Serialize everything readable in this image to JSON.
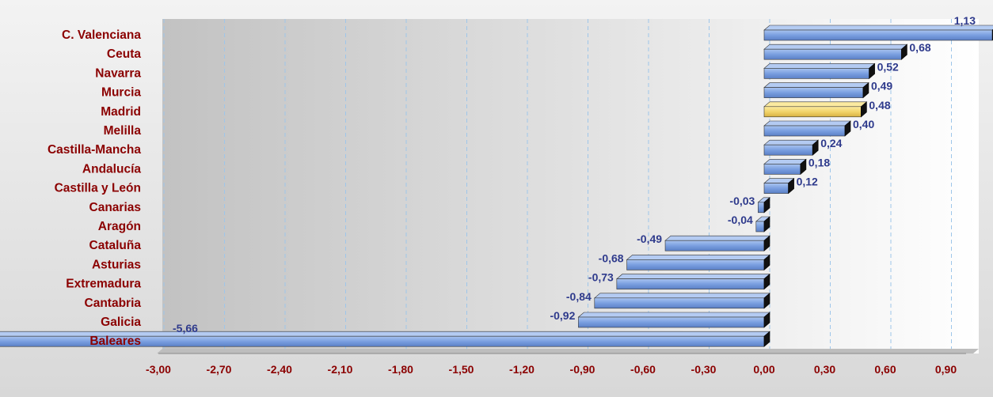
{
  "chart_data": {
    "type": "bar",
    "orientation": "horizontal",
    "title": "",
    "xlabel": "",
    "ylabel": "",
    "categories": [
      "C. Valenciana",
      "Ceuta",
      "Navarra",
      "Murcia",
      "Madrid",
      "Melilla",
      "Castilla-Mancha",
      "Andalucía",
      "Castilla y León",
      "Canarias",
      "Aragón",
      "Cataluña",
      "Asturias",
      "Extremadura",
      "Cantabria",
      "Galicia",
      "Baleares"
    ],
    "values": [
      1.13,
      0.68,
      0.52,
      0.49,
      0.48,
      0.4,
      0.24,
      0.18,
      0.12,
      -0.03,
      -0.04,
      -0.49,
      -0.68,
      -0.73,
      -0.84,
      -0.92,
      -5.66
    ],
    "value_labels": [
      "1,13",
      "0,68",
      "0,52",
      "0,49",
      "0,48",
      "0,40",
      "0,24",
      "0,18",
      "0,12",
      "-0,03",
      "-0,04",
      "-0,49",
      "-0,68",
      "-0,73",
      "-0,84",
      "-0,92",
      "-5,66"
    ],
    "highlight_category": "Madrid",
    "xlim": [
      -3.0,
      1.0
    ],
    "ticks": [
      -3.0,
      -2.7,
      -2.4,
      -2.1,
      -1.8,
      -1.5,
      -1.2,
      -0.9,
      -0.6,
      -0.3,
      0.0,
      0.3,
      0.6,
      0.9
    ],
    "tick_labels": [
      "-3,00",
      "-2,70",
      "-2,40",
      "-2,10",
      "-1,80",
      "-1,50",
      "-1,20",
      "-0,90",
      "-0,60",
      "-0,30",
      "0,00",
      "0,30",
      "0,60",
      "0,90"
    ],
    "grid": true,
    "legend": false
  },
  "colors": {
    "bar": "#7a9fe0",
    "bar_dark": "#4d72b8",
    "bar_highlight": "#f2d46a",
    "bar_highlight_dark": "#c9a42a",
    "category_text": "#8b0000",
    "value_text": "#2e3a8c",
    "tick_text": "#8b0000",
    "grid": "#9ec6ea"
  }
}
